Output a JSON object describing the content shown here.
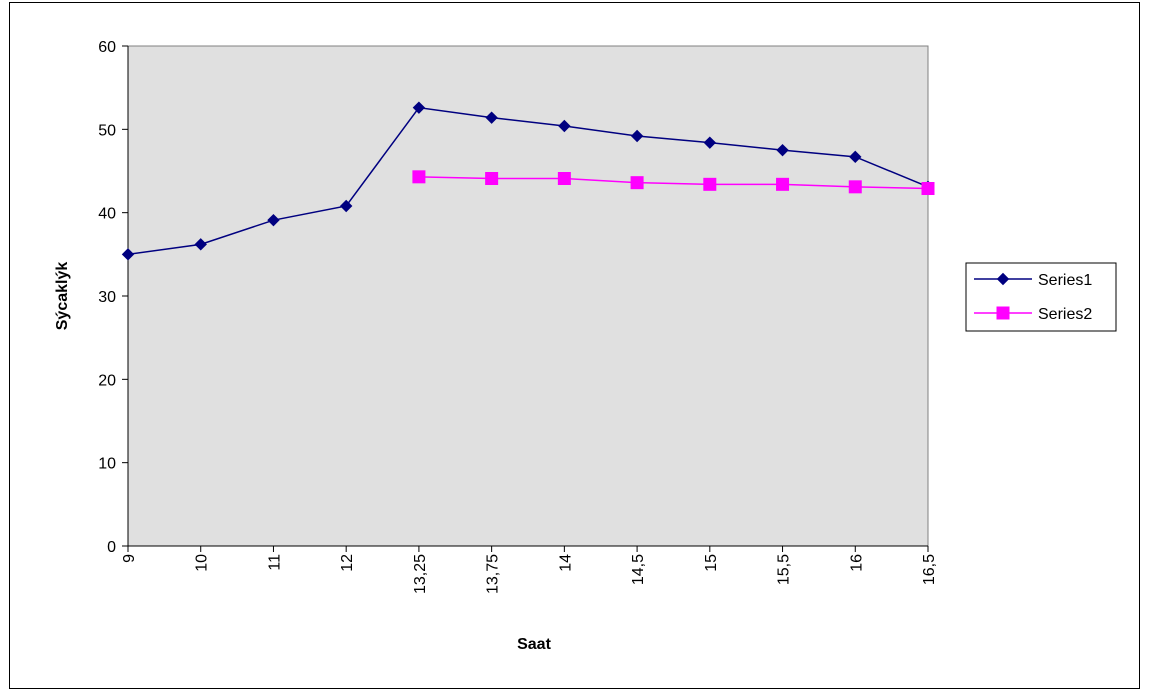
{
  "chart_data": {
    "type": "line",
    "title": "",
    "xlabel": "Saat",
    "ylabel": "Sýcaklýk",
    "categories": [
      "9",
      "10",
      "11",
      "12",
      "13,25",
      "13,75",
      "14",
      "14,5",
      "15",
      "15,5",
      "16",
      "16,5"
    ],
    "ylim": [
      0,
      60
    ],
    "yticks": [
      0,
      10,
      20,
      30,
      40,
      50,
      60
    ],
    "grid": false,
    "legend_position": "right",
    "plot_background": "#e0e0e0",
    "series": [
      {
        "name": "Series1",
        "color": "#000080",
        "marker": "diamond",
        "values": [
          35.0,
          36.2,
          39.1,
          40.8,
          52.6,
          51.4,
          50.4,
          49.2,
          48.4,
          47.5,
          46.7,
          43.1
        ]
      },
      {
        "name": "Series2",
        "color": "#ff00ff",
        "marker": "square",
        "values": [
          null,
          null,
          null,
          null,
          44.3,
          44.1,
          44.1,
          43.6,
          43.4,
          43.4,
          43.1,
          42.9
        ]
      }
    ]
  }
}
